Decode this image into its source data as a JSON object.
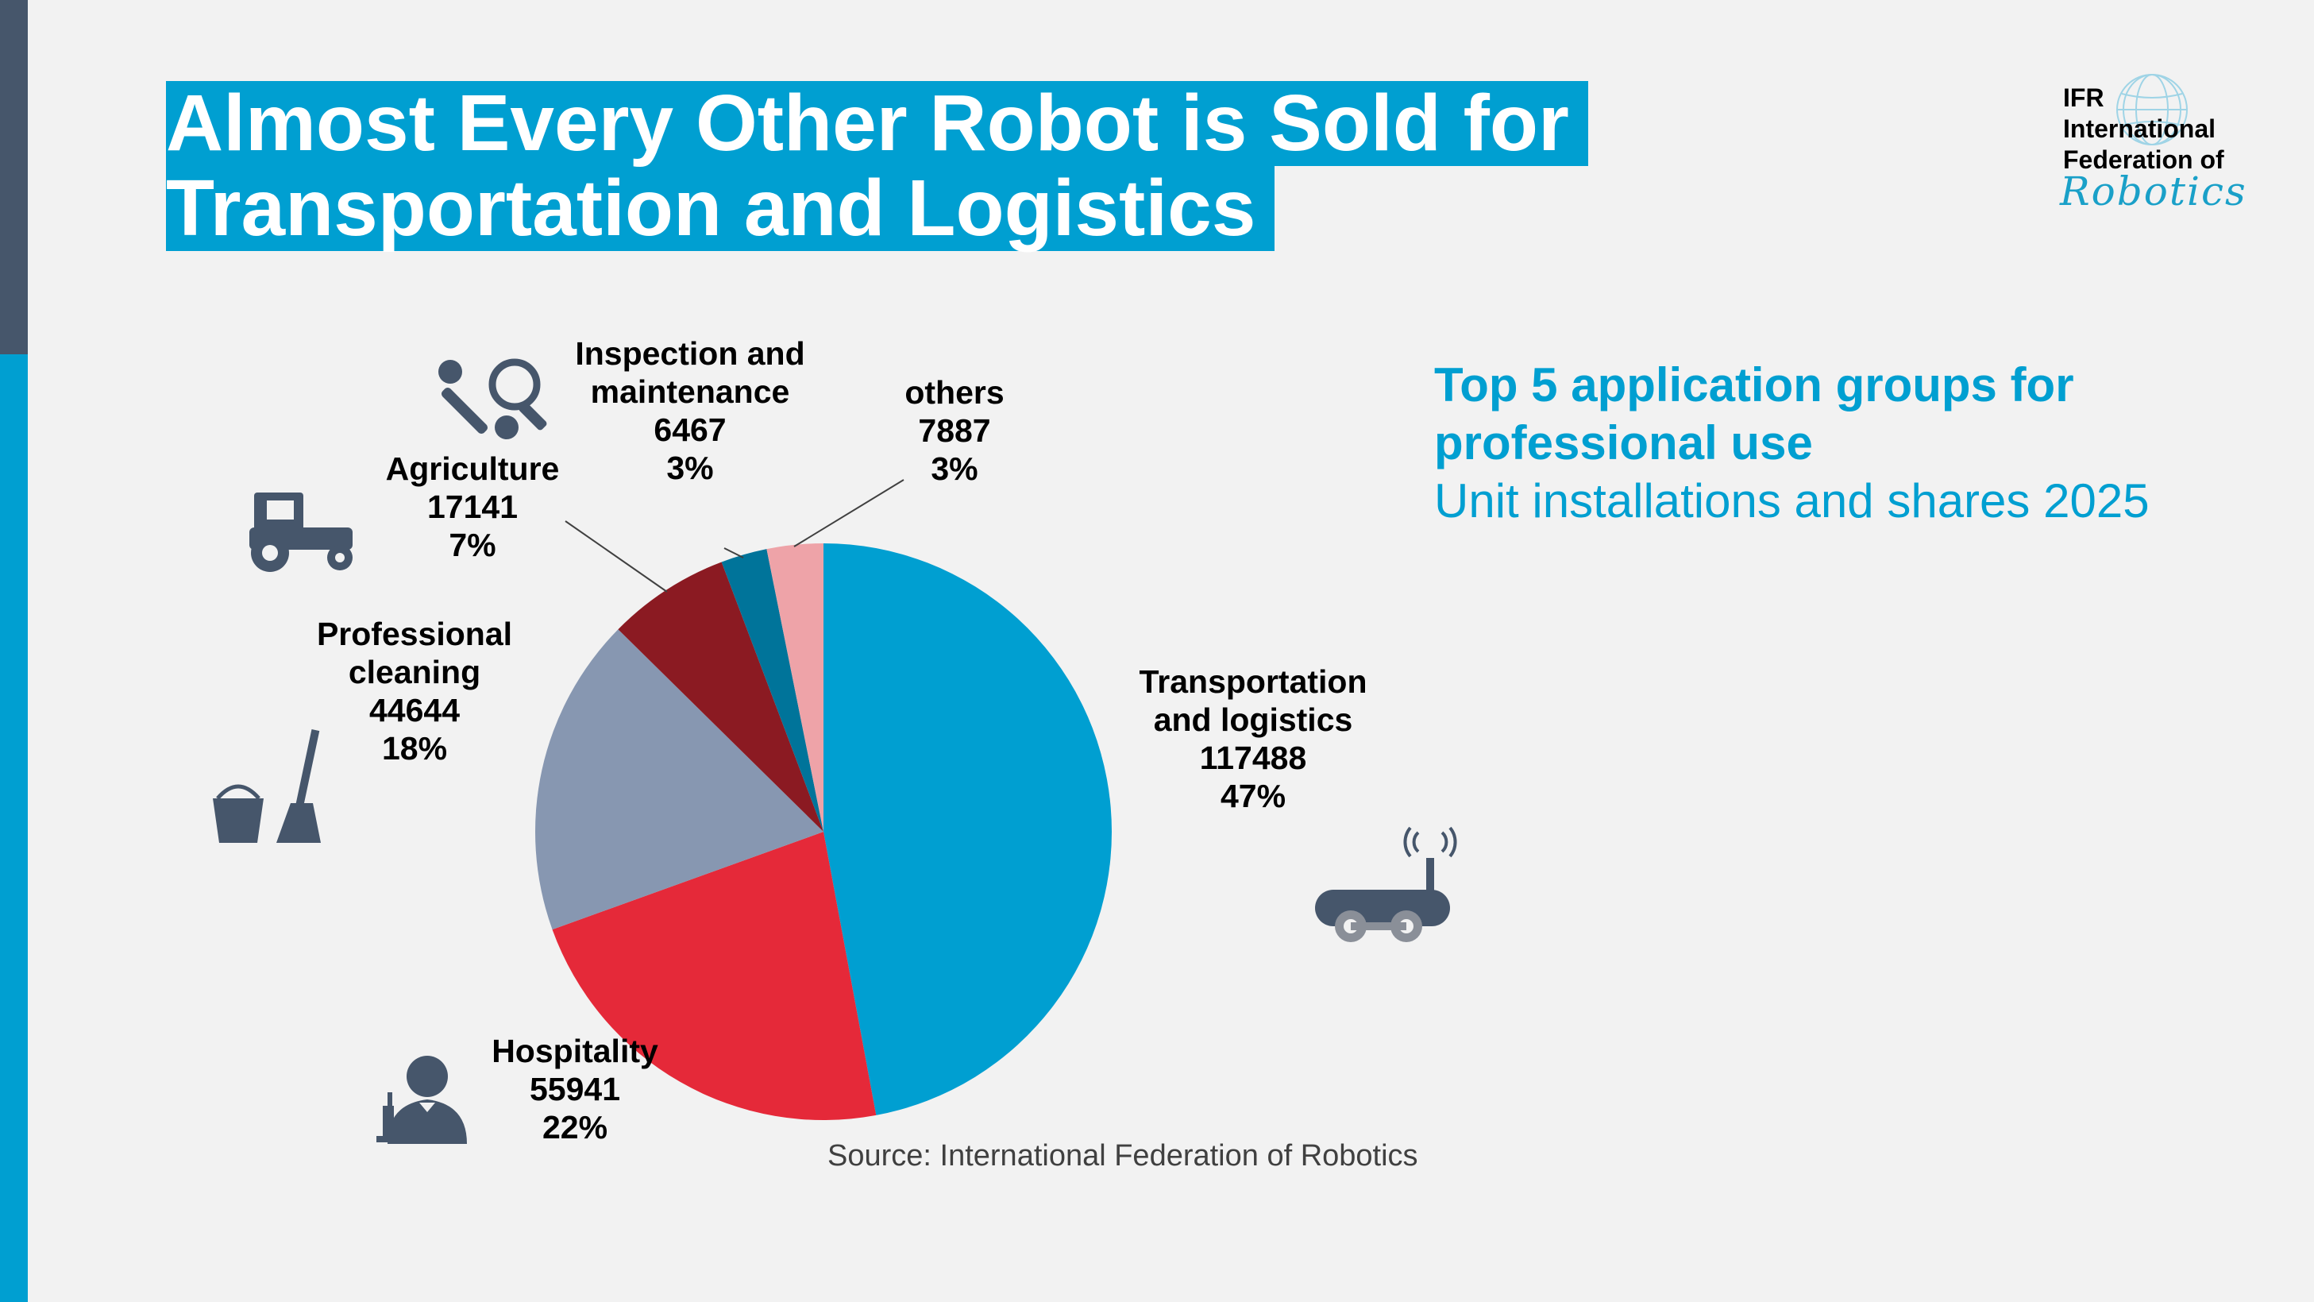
{
  "title": {
    "line1": "Almost Every Other Robot is Sold for",
    "line2": "Transportation and Logistics"
  },
  "logo": {
    "line1": "IFR",
    "line2": "International",
    "line3": "Federation of",
    "script": "Robotics"
  },
  "subtitle": {
    "bold_line1": "Top 5 application groups for",
    "bold_line2": "professional use",
    "normal_line": "Unit installations and shares 2025"
  },
  "source": "Source: International Federation of Robotics",
  "colors": {
    "accent": "#009fd1",
    "sidebar_dark": "#46566b",
    "icon": "#46566b"
  },
  "chart_data": {
    "type": "pie",
    "slices": [
      {
        "label_lines": [
          "Transportation",
          "and logistics"
        ],
        "value": 117488,
        "percent": "47%",
        "color": "#009fd1",
        "icon": "delivery-robot-icon"
      },
      {
        "label_lines": [
          "Hospitality"
        ],
        "value": 55941,
        "percent": "22%",
        "color": "#e52939",
        "icon": "waiter-icon"
      },
      {
        "label_lines": [
          "Professional",
          "cleaning"
        ],
        "value": 44644,
        "percent": "18%",
        "color": "#8797b1",
        "icon": "bucket-mop-icon"
      },
      {
        "label_lines": [
          "Agriculture"
        ],
        "value": 17141,
        "percent": "7%",
        "color": "#8b1a22",
        "icon": "tractor-icon"
      },
      {
        "label_lines": [
          "Inspection and",
          "maintenance"
        ],
        "value": 6467,
        "percent": "3%",
        "color": "#00749a",
        "icon": "wrench-magnifier-icon"
      },
      {
        "label_lines": [
          "others"
        ],
        "value": 7887,
        "percent": "3%",
        "color": "#eea3a8",
        "icon": ""
      }
    ]
  }
}
